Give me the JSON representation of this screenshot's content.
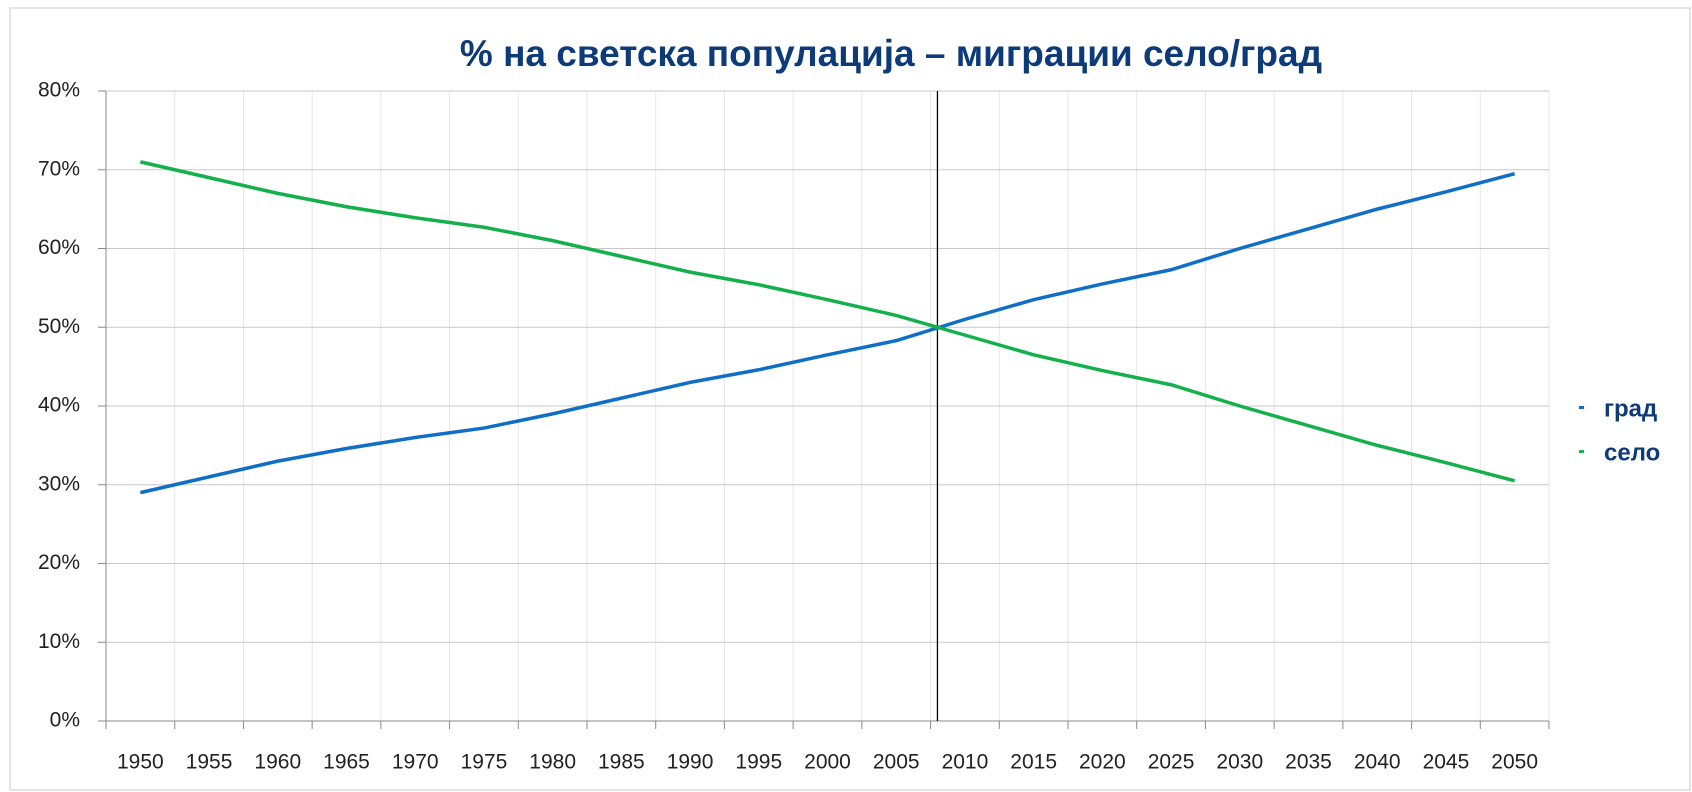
{
  "chart_data": {
    "type": "line",
    "title": "% на светска популација – миграции село/град",
    "categories": [
      "1950",
      "1955",
      "1960",
      "1965",
      "1970",
      "1975",
      "1980",
      "1985",
      "1990",
      "1995",
      "2000",
      "2005",
      "2010",
      "2015",
      "2020",
      "2025",
      "2030",
      "2035",
      "2040",
      "2045",
      "2050"
    ],
    "series": [
      {
        "name": "град",
        "color": "#0f6fc6",
        "values": [
          29,
          31,
          33,
          34.6,
          36,
          37.2,
          39,
          41,
          43,
          44.6,
          46.5,
          48.3,
          51,
          53.5,
          55.5,
          57.3,
          60,
          62.5,
          65,
          67.2,
          69.5
        ]
      },
      {
        "name": "село",
        "color": "#13b04b",
        "values": [
          71,
          69,
          67,
          65.3,
          63.9,
          62.7,
          61,
          59,
          57,
          55.4,
          53.5,
          51.5,
          49,
          46.5,
          44.5,
          42.7,
          40,
          37.5,
          35,
          32.8,
          30.5
        ]
      }
    ],
    "vline": 2008,
    "ylim": [
      0,
      80
    ],
    "yticks": [
      {
        "value": 0,
        "label": "0%"
      },
      {
        "value": 10,
        "label": "10%"
      },
      {
        "value": 20,
        "label": "20%"
      },
      {
        "value": 30,
        "label": "30%"
      },
      {
        "value": 40,
        "label": "40%"
      },
      {
        "value": 50,
        "label": "50%"
      },
      {
        "value": 60,
        "label": "60%"
      },
      {
        "value": 70,
        "label": "70%"
      },
      {
        "value": 80,
        "label": "80%"
      }
    ],
    "grid": true,
    "legend": "right"
  }
}
